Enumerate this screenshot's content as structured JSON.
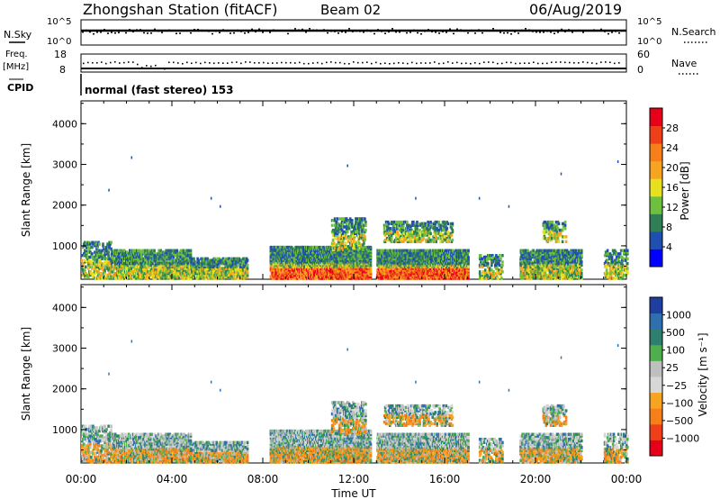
{
  "header": {
    "station": "Zhongshan Station (fitACF)",
    "beam": "Beam 02",
    "date": "06/Aug/2019"
  },
  "top_panels": {
    "nsky_label": "N.Sky",
    "nsearch_label": "N.Search",
    "noise_ticks_left": [
      "10^5",
      "10^0"
    ],
    "noise_ticks_right": [
      "10^5",
      "10^0"
    ],
    "freq_label_line1": "Freq.",
    "freq_label_line2": "[MHz]",
    "freq_ticks": [
      "18",
      "8"
    ],
    "nave_label": "Nave",
    "nave_ticks": [
      "60",
      "0"
    ],
    "cpid_label": "CPID",
    "cpid_text": "normal (fast stereo) 153"
  },
  "colors": {
    "power_scale": [
      "#0000ff",
      "#1f4fb0",
      "#2f7f55",
      "#6fbf3f",
      "#e6e01f",
      "#f7a520",
      "#f77f1a",
      "#ef3f1a",
      "#e6001a"
    ],
    "velocity_scale": [
      "#1f3fa0",
      "#2f6fb0",
      "#2f7f6f",
      "#4faf4f",
      "#bfbfbf",
      "#d7d7d7",
      "#f7a520",
      "#f77f1a",
      "#ef3f1a",
      "#e6001a"
    ]
  },
  "chart_data": [
    {
      "type": "heatmap",
      "name": "power",
      "ylabel": "Slant Range [km]",
      "ylim": [
        180,
        4560
      ],
      "yticks": [
        "1000",
        "2000",
        "3000",
        "4000"
      ],
      "xlim_hours": [
        0,
        24
      ],
      "xtick_labels": [
        "00:00",
        "04:00",
        "08:00",
        "12:00",
        "16:00",
        "20:00",
        "00:00"
      ],
      "colorbar_label": "Power [dB]",
      "colorbar_ticks": [
        "4",
        "8",
        "12",
        "16",
        "20",
        "24",
        "28"
      ],
      "colorbar_range": [
        0,
        30
      ],
      "echo_regions": [
        {
          "start_h": 0.0,
          "end_h": 1.3,
          "range_low_km": 200,
          "range_high_km": 1100,
          "level": "low"
        },
        {
          "start_h": 1.3,
          "end_h": 4.8,
          "range_low_km": 200,
          "range_high_km": 900,
          "level": "mid"
        },
        {
          "start_h": 4.8,
          "end_h": 7.3,
          "range_low_km": 200,
          "range_high_km": 700,
          "level": "mid"
        },
        {
          "start_h": 8.3,
          "end_h": 12.7,
          "range_low_km": 200,
          "range_high_km": 1000,
          "level": "high"
        },
        {
          "start_h": 11.0,
          "end_h": 12.5,
          "range_low_km": 900,
          "range_high_km": 1700,
          "level": "low"
        },
        {
          "start_h": 13.0,
          "end_h": 17.0,
          "range_low_km": 200,
          "range_high_km": 900,
          "level": "high"
        },
        {
          "start_h": 13.3,
          "end_h": 16.3,
          "range_low_km": 1100,
          "range_high_km": 1600,
          "level": "low"
        },
        {
          "start_h": 17.5,
          "end_h": 18.5,
          "range_low_km": 200,
          "range_high_km": 800,
          "level": "low"
        },
        {
          "start_h": 19.3,
          "end_h": 22.0,
          "range_low_km": 200,
          "range_high_km": 900,
          "level": "mid"
        },
        {
          "start_h": 20.3,
          "end_h": 21.3,
          "range_low_km": 1100,
          "range_high_km": 1600,
          "level": "low"
        },
        {
          "start_h": 23.0,
          "end_h": 24.0,
          "range_low_km": 200,
          "range_high_km": 900,
          "level": "low"
        }
      ]
    },
    {
      "type": "heatmap",
      "name": "velocity",
      "ylabel": "Slant Range [km]",
      "ylim": [
        180,
        4560
      ],
      "yticks": [
        "1000",
        "2000",
        "3000",
        "4000"
      ],
      "xlim_hours": [
        0,
        24
      ],
      "xtick_labels": [
        "00:00",
        "04:00",
        "08:00",
        "12:00",
        "16:00",
        "20:00",
        "00:00"
      ],
      "xlabel": "Time UT",
      "colorbar_label": "Velocity [m s⁻¹]",
      "colorbar_ticks": [
        "1000",
        "500",
        "100",
        "25",
        "−25",
        "−100",
        "−500",
        "−1000"
      ],
      "echo_regions": [
        {
          "start_h": 0.0,
          "end_h": 1.3,
          "range_low_km": 200,
          "range_high_km": 1100,
          "level": "low"
        },
        {
          "start_h": 1.3,
          "end_h": 4.8,
          "range_low_km": 200,
          "range_high_km": 900,
          "level": "mid"
        },
        {
          "start_h": 4.8,
          "end_h": 7.3,
          "range_low_km": 200,
          "range_high_km": 700,
          "level": "mid"
        },
        {
          "start_h": 8.3,
          "end_h": 12.7,
          "range_low_km": 200,
          "range_high_km": 1000,
          "level": "high"
        },
        {
          "start_h": 11.0,
          "end_h": 12.5,
          "range_low_km": 900,
          "range_high_km": 1700,
          "level": "low"
        },
        {
          "start_h": 13.0,
          "end_h": 17.0,
          "range_low_km": 200,
          "range_high_km": 900,
          "level": "high"
        },
        {
          "start_h": 13.3,
          "end_h": 16.3,
          "range_low_km": 1100,
          "range_high_km": 1600,
          "level": "low"
        },
        {
          "start_h": 17.5,
          "end_h": 18.5,
          "range_low_km": 200,
          "range_high_km": 800,
          "level": "low"
        },
        {
          "start_h": 19.3,
          "end_h": 22.0,
          "range_low_km": 200,
          "range_high_km": 900,
          "level": "mid"
        },
        {
          "start_h": 20.3,
          "end_h": 21.3,
          "range_low_km": 1100,
          "range_high_km": 1600,
          "level": "low"
        },
        {
          "start_h": 23.0,
          "end_h": 24.0,
          "range_low_km": 200,
          "range_high_km": 900,
          "level": "low"
        }
      ]
    }
  ]
}
